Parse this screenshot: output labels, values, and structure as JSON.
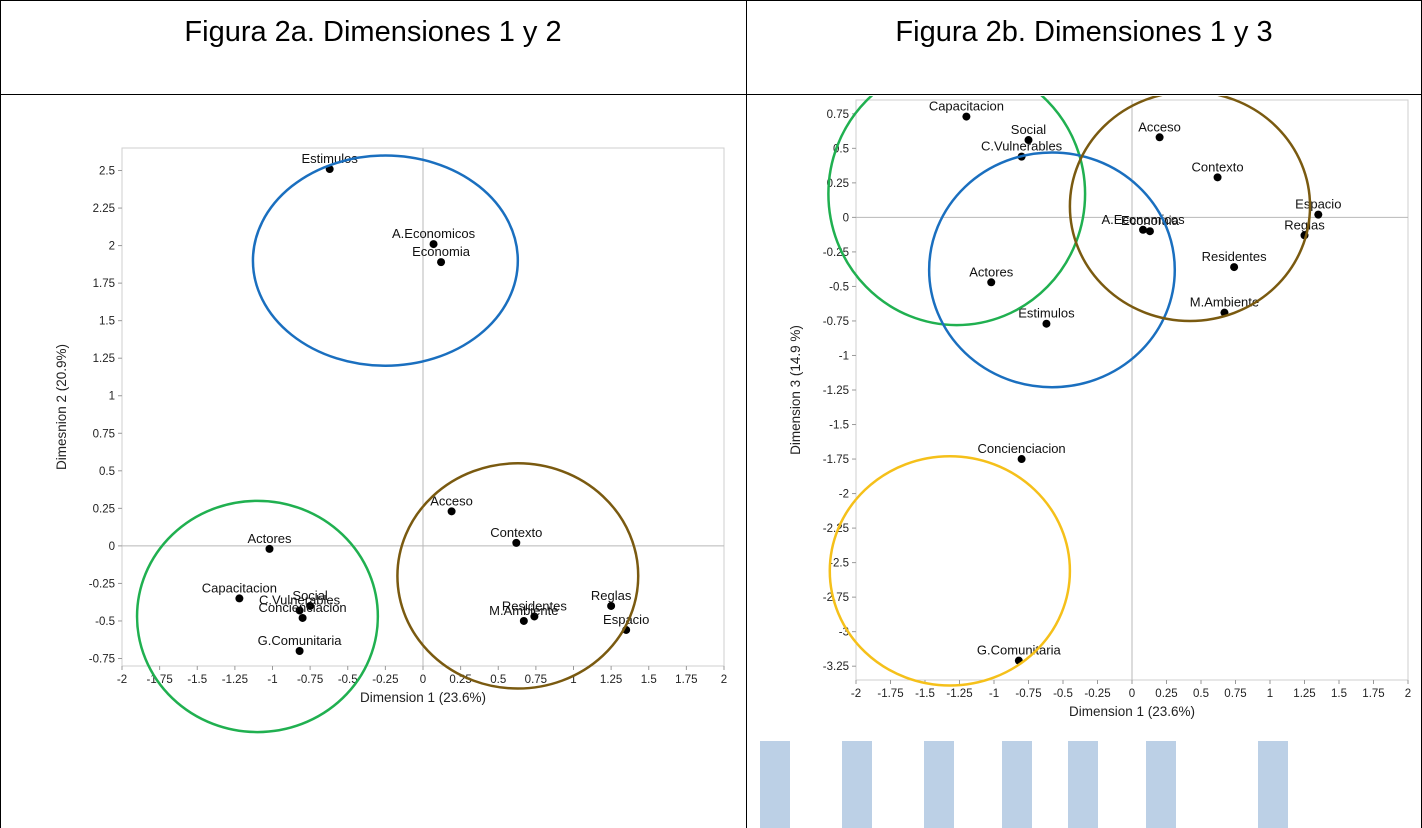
{
  "headers": {
    "left": "Figura 2a. Dimensiones 1 y 2",
    "right": "Figura 2b. Dimensiones 1 y 3"
  },
  "colors": {
    "blue": "#1a6fbf",
    "green": "#20b050",
    "brown": "#7a5a10",
    "yellow": "#f5c01a",
    "watermark": "#bcd0e6"
  },
  "chart_data": [
    {
      "type": "scatter",
      "title": "",
      "xlabel": "Dimension 1 (23.6%)",
      "ylabel": "Dimesnion 2 (20.9%)",
      "xlim": [
        -2,
        2
      ],
      "ylim": [
        -0.8,
        2.65
      ],
      "xticks": [
        "-2",
        "-1.75",
        "-1.5",
        "-1.25",
        "-1",
        "-0.75",
        "-0.5",
        "-0.25",
        "0",
        "0.25",
        "0.5",
        "0.75",
        "1",
        "1.25",
        "1.5",
        "1.75",
        "2"
      ],
      "yticks": [
        "2.5",
        "2.25",
        "2",
        "1.75",
        "1.5",
        "1.25",
        "1",
        "0.75",
        "0.5",
        "0.25",
        "0",
        "-0.25",
        "-0.5",
        "-0.75"
      ],
      "points": [
        {
          "label": "Estimulos",
          "x": -0.62,
          "y": 2.51
        },
        {
          "label": "A.Economicos",
          "x": 0.07,
          "y": 2.01
        },
        {
          "label": "Economia",
          "x": 0.12,
          "y": 1.89
        },
        {
          "label": "Acceso",
          "x": 0.19,
          "y": 0.23
        },
        {
          "label": "Contexto",
          "x": 0.62,
          "y": 0.02
        },
        {
          "label": "Actores",
          "x": -1.02,
          "y": -0.02
        },
        {
          "label": "Capacitacion",
          "x": -1.22,
          "y": -0.35
        },
        {
          "label": "Social",
          "x": -0.75,
          "y": -0.4
        },
        {
          "label": "C.Vulnerables",
          "x": -0.82,
          "y": -0.43
        },
        {
          "label": "Concienciacion",
          "x": -0.8,
          "y": -0.48
        },
        {
          "label": "G.Comunitaria",
          "x": -0.82,
          "y": -0.7
        },
        {
          "label": "Residentes",
          "x": 0.74,
          "y": -0.47
        },
        {
          "label": "M.Ambiente",
          "x": 0.67,
          "y": -0.5
        },
        {
          "label": "Reglas",
          "x": 1.25,
          "y": -0.4
        },
        {
          "label": "Espacio",
          "x": 1.35,
          "y": -0.56
        }
      ],
      "circles": [
        {
          "color": "blue",
          "cx": -0.25,
          "cy": 1.9,
          "rx": 0.88,
          "ry": 0.7
        },
        {
          "color": "green",
          "cx": -1.1,
          "cy": -0.47,
          "rx": 0.8,
          "ry": 0.77
        },
        {
          "color": "brown",
          "cx": 0.63,
          "cy": -0.2,
          "rx": 0.8,
          "ry": 0.75
        }
      ]
    },
    {
      "type": "scatter",
      "title": "",
      "xlabel": "Dimension 1 (23.6%)",
      "ylabel": "Dimension 3 (14.9 %)",
      "xlim": [
        -2,
        2
      ],
      "ylim": [
        -3.35,
        0.85
      ],
      "xticks": [
        "-2",
        "-1.75",
        "-1.5",
        "-1.25",
        "-1",
        "-0.75",
        "-0.5",
        "-0.25",
        "0",
        "0.25",
        "0.5",
        "0.75",
        "1",
        "1.25",
        "1.5",
        "1.75",
        "2"
      ],
      "yticks": [
        "0.75",
        "0.5",
        "0.25",
        "0",
        "-0.25",
        "-0.5",
        "-0.75",
        "-1",
        "-1.25",
        "-1.5",
        "-1.75",
        "-2",
        "-2.25",
        "-2.5",
        "-2.75",
        "-3",
        "-3.25"
      ],
      "points": [
        {
          "label": "Capacitacion",
          "x": -1.2,
          "y": 0.73
        },
        {
          "label": "Social",
          "x": -0.75,
          "y": 0.56
        },
        {
          "label": "C.Vulnerables",
          "x": -0.8,
          "y": 0.44
        },
        {
          "label": "Acceso",
          "x": 0.2,
          "y": 0.58
        },
        {
          "label": "Contexto",
          "x": 0.62,
          "y": 0.29
        },
        {
          "label": "Espacio",
          "x": 1.35,
          "y": 0.02
        },
        {
          "label": "Reglas",
          "x": 1.25,
          "y": -0.13
        },
        {
          "label": "A.Economicos",
          "x": 0.08,
          "y": -0.09
        },
        {
          "label": "Economia",
          "x": 0.13,
          "y": -0.1
        },
        {
          "label": "Residentes",
          "x": 0.74,
          "y": -0.36
        },
        {
          "label": "Actores",
          "x": -1.02,
          "y": -0.47
        },
        {
          "label": "M.Ambiente",
          "x": 0.67,
          "y": -0.69
        },
        {
          "label": "Estimulos",
          "x": -0.62,
          "y": -0.77
        },
        {
          "label": "Concienciacion",
          "x": -0.8,
          "y": -1.75
        },
        {
          "label": "G.Comunitaria",
          "x": -0.82,
          "y": -3.21
        }
      ],
      "circles": [
        {
          "color": "green",
          "cx": -1.27,
          "cy": 0.17,
          "rx": 0.93,
          "ry": 0.95
        },
        {
          "color": "blue",
          "cx": -0.58,
          "cy": -0.38,
          "rx": 0.89,
          "ry": 0.85
        },
        {
          "color": "brown",
          "cx": 0.42,
          "cy": 0.08,
          "rx": 0.87,
          "ry": 0.83
        },
        {
          "color": "yellow",
          "cx": -1.32,
          "cy": -2.56,
          "rx": 0.87,
          "ry": 0.83
        }
      ]
    }
  ]
}
